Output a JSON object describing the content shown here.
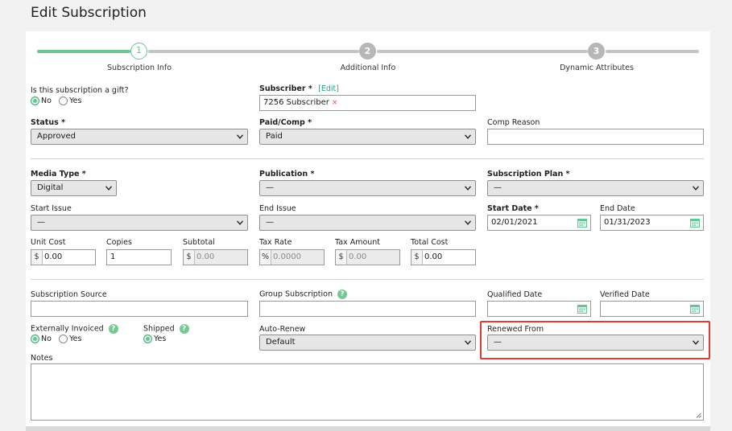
{
  "page": {
    "title": "Edit Subscription"
  },
  "stepper": {
    "steps": [
      {
        "number": "1",
        "label": "Subscription Info"
      },
      {
        "number": "2",
        "label": "Additional Info"
      },
      {
        "number": "3",
        "label": "Dynamic Attributes"
      }
    ],
    "active_color": "#64c795",
    "inactive_color": "#b7b7b7"
  },
  "gift": {
    "label": "Is this subscription a gift?",
    "options": [
      "No",
      "Yes"
    ],
    "selected": "No"
  },
  "subscriber": {
    "label": "Subscriber *",
    "edit_link": "[Edit]",
    "value": "7256 Subscriber",
    "remove_glyph": "×"
  },
  "status": {
    "label": "Status *",
    "value": "Approved"
  },
  "paid_comp": {
    "label": "Paid/Comp *",
    "value": "Paid"
  },
  "comp_reason": {
    "label": "Comp Reason",
    "value": ""
  },
  "media_type": {
    "label": "Media Type *",
    "value": "Digital"
  },
  "publication": {
    "label": "Publication *",
    "value": "—"
  },
  "subscription_plan": {
    "label": "Subscription Plan *",
    "value": "—"
  },
  "start_issue": {
    "label": "Start Issue",
    "value": "—"
  },
  "end_issue": {
    "label": "End Issue",
    "value": "—"
  },
  "start_date": {
    "label": "Start Date *",
    "value": "02/01/2021"
  },
  "end_date": {
    "label": "End Date",
    "value": "01/31/2023"
  },
  "unit_cost": {
    "label": "Unit Cost",
    "prefix": "$",
    "value": "0.00"
  },
  "copies": {
    "label": "Copies",
    "value": "1"
  },
  "subtotal": {
    "label": "Subtotal",
    "prefix": "$",
    "value": "0.00"
  },
  "tax_rate": {
    "label": "Tax Rate",
    "prefix": "%",
    "value": "0.0000"
  },
  "tax_amount": {
    "label": "Tax Amount",
    "prefix": "$",
    "value": "0.00"
  },
  "total_cost": {
    "label": "Total Cost",
    "prefix": "$",
    "value": "0.00"
  },
  "subscription_source": {
    "label": "Subscription Source",
    "value": ""
  },
  "group_subscription": {
    "label": "Group Subscription",
    "help": "?",
    "value": ""
  },
  "qualified_date": {
    "label": "Qualified Date",
    "value": ""
  },
  "verified_date": {
    "label": "Verified Date",
    "value": ""
  },
  "externally_invoiced": {
    "label": "Externally Invoiced",
    "help": "?",
    "options": [
      "No",
      "Yes"
    ],
    "selected": "No"
  },
  "shipped": {
    "label": "Shipped",
    "help": "?",
    "options": [
      "Yes"
    ],
    "selected": "Yes"
  },
  "auto_renew": {
    "label": "Auto-Renew",
    "value": "Default"
  },
  "renewed_from": {
    "label": "Renewed From",
    "value": "—",
    "highlight_color": "#e33b2f"
  },
  "notes": {
    "label": "Notes",
    "value": ""
  },
  "icons": {
    "calendar": "calendar-icon",
    "chevron": "chevron-down-icon",
    "help": "help-icon",
    "resize": "resize-handle-icon"
  }
}
